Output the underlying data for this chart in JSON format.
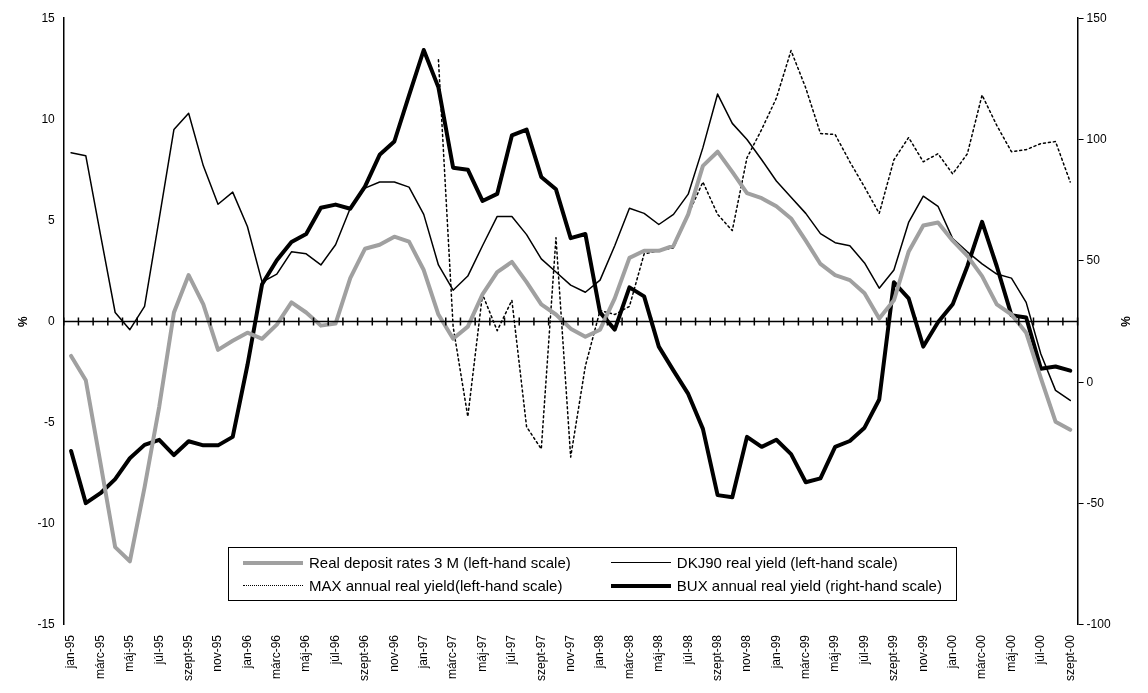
{
  "chart_data": {
    "type": "line",
    "ylabel": "%",
    "y2label": "%",
    "legend": "bottom",
    "marker": "none",
    "categories": [
      "jan-95",
      null,
      "márc-95",
      null,
      "máj-95",
      null,
      "júl-95",
      null,
      "szept-95",
      null,
      "nov-95",
      null,
      "jan-96",
      null,
      "márc-96",
      null,
      "máj-96",
      null,
      "júl-96",
      null,
      "szept-96",
      null,
      "nov-96",
      null,
      "jan-97",
      null,
      "márc-97",
      null,
      "máj-97",
      null,
      "júl-97",
      null,
      "szept-97",
      null,
      "nov-97",
      null,
      "jan-98",
      null,
      "márc-98",
      null,
      "máj-98",
      null,
      "júl-98",
      null,
      "szept-98",
      null,
      "nov-98",
      null,
      "jan-99",
      null,
      "márc-99",
      null,
      "máj-99",
      null,
      "júl-99",
      null,
      "szept-99",
      null,
      "nov-99",
      null,
      "jan-00",
      null,
      "márc-00",
      null,
      "máj-00",
      null,
      "júl-00",
      null,
      "szept-00"
    ],
    "ylim": [
      -15,
      15
    ],
    "yticks": [
      -15,
      -10,
      -5,
      0,
      5,
      10,
      15
    ],
    "y2lim": [
      -100,
      150
    ],
    "y2ticks": [
      -100,
      -50,
      0,
      50,
      100,
      150
    ],
    "series": [
      {
        "name": "Real deposit rates 3 M (left-hand scale)",
        "color": "#a0a0a0",
        "values": [
          -1.7,
          -2.9,
          -7.0,
          -11.15,
          -11.85,
          -8.2,
          -4.2,
          0.45,
          2.3,
          0.85,
          -1.4,
          -0.95,
          -0.55,
          -0.85,
          -0.15,
          0.95,
          0.45,
          -0.2,
          -0.1,
          2.15,
          3.6,
          3.8,
          4.2,
          3.95,
          2.55,
          0.35,
          -0.85,
          -0.25,
          1.35,
          2.45,
          2.95,
          1.95,
          0.85,
          0.35,
          -0.35,
          -0.75,
          -0.4,
          1.15,
          3.15,
          3.5,
          3.5,
          3.75,
          5.3,
          7.7,
          8.4,
          7.4,
          6.35,
          6.1,
          5.7,
          5.1,
          4.0,
          2.85,
          2.3,
          2.05,
          1.4,
          0.15,
          1.05,
          3.45,
          4.75,
          4.9,
          4.0,
          3.25,
          2.25,
          0.85,
          0.35,
          -0.55,
          -2.8,
          -4.95,
          -5.35
        ]
      },
      {
        "name": "DKJ90 real yield (left-hand scale)",
        "color": "#000000",
        "values": [
          8.35,
          8.2,
          4.3,
          0.45,
          -0.4,
          0.75,
          5.1,
          9.5,
          10.3,
          7.7,
          5.8,
          6.4,
          4.7,
          1.95,
          2.35,
          3.45,
          3.35,
          2.8,
          3.8,
          5.6,
          6.6,
          6.9,
          6.9,
          6.65,
          5.3,
          2.8,
          1.55,
          2.25,
          3.75,
          5.2,
          5.2,
          4.3,
          3.1,
          2.45,
          1.8,
          1.45,
          2.05,
          3.75,
          5.6,
          5.35,
          4.8,
          5.3,
          6.3,
          8.6,
          11.25,
          9.8,
          9.0,
          8.0,
          6.95,
          6.15,
          5.35,
          4.35,
          3.9,
          3.75,
          2.9,
          1.65,
          2.55,
          4.9,
          6.2,
          5.7,
          4.1,
          3.45,
          2.85,
          2.35,
          2.15,
          0.95,
          -1.6,
          -3.4,
          -3.9
        ]
      },
      {
        "name": "MAX annual real yield(left-hand scale)",
        "color": "#000000",
        "line_style": "dotted",
        "values": [
          null,
          null,
          null,
          null,
          null,
          null,
          null,
          null,
          null,
          null,
          null,
          null,
          null,
          null,
          null,
          null,
          null,
          null,
          null,
          null,
          null,
          null,
          null,
          null,
          null,
          12.95,
          -0.25,
          -4.7,
          1.35,
          -0.45,
          1.05,
          -5.2,
          -6.3,
          4.15,
          -6.7,
          -2.2,
          0.55,
          0.35,
          0.75,
          3.35,
          3.5,
          3.65,
          5.3,
          6.9,
          5.3,
          4.5,
          8.1,
          9.5,
          11.05,
          13.4,
          11.55,
          9.3,
          9.25,
          7.9,
          6.65,
          5.35,
          8.0,
          9.1,
          7.9,
          8.3,
          7.3,
          8.3,
          11.2,
          9.7,
          8.4,
          8.5,
          8.8,
          8.9,
          6.9
        ]
      },
      {
        "name": "BUX annual real yield (right-hand scale)",
        "color": "#000000",
        "axis": "y2",
        "values": [
          -28.3,
          -49.8,
          -45.7,
          -39.9,
          -31.3,
          -25.8,
          -23.7,
          -30,
          -24.3,
          -26,
          -26,
          -22.5,
          7,
          40.4,
          50.3,
          57.8,
          61.1,
          71.9,
          73.2,
          71.5,
          80.6,
          93.7,
          99.2,
          118.2,
          136.9,
          121.5,
          88.4,
          87.6,
          74.7,
          77.6,
          101.7,
          104.1,
          84.6,
          79.5,
          59.4,
          61.1,
          28.8,
          21.7,
          39.1,
          35.4,
          14.7,
          4.8,
          -4.8,
          -19.2,
          -46.5,
          -47.4,
          -22.5,
          -26.6,
          -23.7,
          -29.6,
          -41.2,
          -39.6,
          -26.6,
          -24.2,
          -18.7,
          -7.1,
          41.2,
          34.6,
          14.7,
          24.7,
          32.1,
          47.8,
          66.1,
          47.8,
          27.6,
          26.7,
          5.6,
          6.5,
          4.8
        ]
      }
    ]
  }
}
